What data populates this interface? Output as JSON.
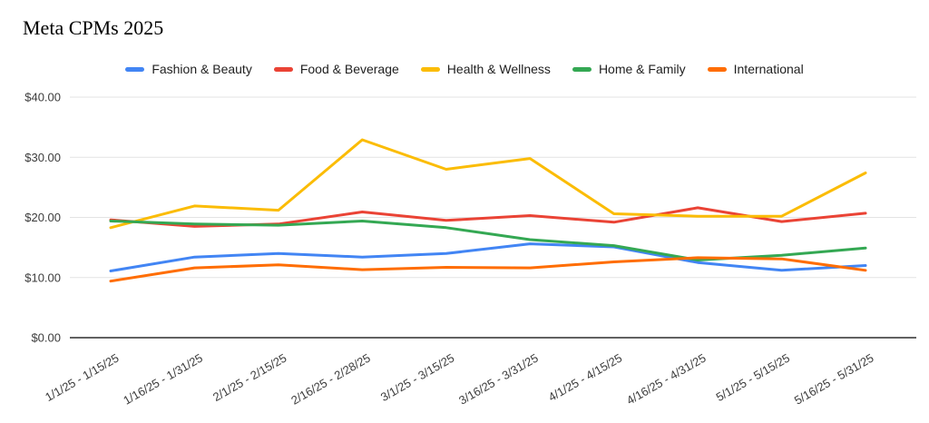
{
  "header": {
    "title": "Meta CPMs 2025"
  },
  "chart_data": {
    "type": "line",
    "title": "Meta CPMs 2025",
    "categories": [
      "1/1/25 - 1/15/25",
      "1/16/25 - 1/31/25",
      "2/1/25 - 2/15/25",
      "2/16/25 - 2/28/25",
      "3/1/25 - 3/15/25",
      "3/16/25 - 3/31/25",
      "4/1/25 - 4/15/25",
      "4/16/25 - 4/31/25",
      "5/1/25 - 5/15/25",
      "5/16/25 - 5/31/25"
    ],
    "series": [
      {
        "name": "Fashion & Beauty",
        "color": "#4285F4",
        "values": [
          11.1,
          13.4,
          14.0,
          13.4,
          14.0,
          15.6,
          15.1,
          12.5,
          11.2,
          12.0
        ]
      },
      {
        "name": "Food & Beverage",
        "color": "#EA4335",
        "values": [
          19.6,
          18.5,
          18.9,
          20.9,
          19.5,
          20.3,
          19.2,
          21.6,
          19.3,
          20.7
        ]
      },
      {
        "name": "Health & Wellness",
        "color": "#FBBC04",
        "values": [
          18.3,
          21.9,
          21.2,
          32.9,
          28.0,
          29.8,
          20.6,
          20.2,
          20.2,
          27.4
        ]
      },
      {
        "name": "Home & Family",
        "color": "#34A853",
        "values": [
          19.4,
          18.9,
          18.7,
          19.4,
          18.3,
          16.3,
          15.3,
          12.9,
          13.7,
          14.9
        ]
      },
      {
        "name": "International",
        "color": "#FF6D01",
        "values": [
          9.4,
          11.6,
          12.1,
          11.3,
          11.7,
          11.6,
          12.6,
          13.3,
          13.1,
          11.2
        ]
      }
    ],
    "xlabel": "",
    "ylabel": "",
    "ylim": [
      0,
      40
    ],
    "y_tick_values": [
      0,
      10,
      20,
      30,
      40
    ],
    "y_tick_labels": [
      "$0.00",
      "$10.00",
      "$20.00",
      "$30.00",
      "$40.00"
    ],
    "grid": true,
    "legend_position": "top"
  },
  "colors": {
    "gridline": "#e3e3e3",
    "baseline": "#616161",
    "tick_text": "#3c3c3c",
    "title_text": "#000000"
  }
}
